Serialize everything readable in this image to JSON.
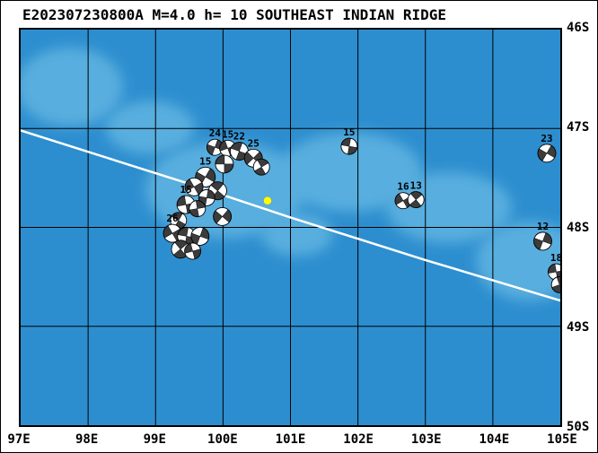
{
  "title": "E202307230800A M=4.0 h= 10 SOUTHEAST INDIAN RIDGE",
  "axes": {
    "lon_ticks": [
      "97E",
      "98E",
      "99E",
      "100E",
      "101E",
      "102E",
      "103E",
      "104E",
      "105E"
    ],
    "lat_ticks": [
      "46S",
      "47S",
      "48S",
      "49S",
      "50S"
    ]
  },
  "map": {
    "lon_min": 97,
    "lon_max": 105,
    "lat_min": 46,
    "lat_max": 50,
    "colors": {
      "ocean": "#2d8ecf",
      "shallow": "#58aede",
      "grid": "#000000",
      "ridge": "#ffffff",
      "mech_fill": "#ffffff",
      "mech_shade": "#3c3c3c",
      "mech_outline": "#000000",
      "epicenter": "#ffff00"
    },
    "ridge_line": [
      [
        97.0,
        47.02
      ],
      [
        99.5,
        47.56
      ],
      [
        101.0,
        47.9
      ],
      [
        103.0,
        48.33
      ],
      [
        105.0,
        48.74
      ]
    ],
    "shallow_patches": [
      {
        "lon": 97.73,
        "lat": 46.58,
        "rx_deg": 0.79,
        "ry_deg": 0.4
      },
      {
        "lon": 98.92,
        "lat": 46.99,
        "rx_deg": 0.66,
        "ry_deg": 0.27
      },
      {
        "lon": 100.04,
        "lat": 47.62,
        "rx_deg": 1.19,
        "ry_deg": 0.49
      },
      {
        "lon": 101.89,
        "lat": 47.44,
        "rx_deg": 1.06,
        "ry_deg": 0.4
      },
      {
        "lon": 103.35,
        "lat": 47.8,
        "rx_deg": 0.93,
        "ry_deg": 0.36
      },
      {
        "lon": 104.54,
        "lat": 48.34,
        "rx_deg": 0.79,
        "ry_deg": 0.4
      },
      {
        "lon": 101.1,
        "lat": 48.07,
        "rx_deg": 0.53,
        "ry_deg": 0.22
      }
    ],
    "epicenter": {
      "lon": 100.66,
      "lat": 47.73,
      "r": 4.5
    },
    "mechanisms": [
      {
        "lon": 99.88,
        "lat": 47.19,
        "r": 9,
        "rot": 20,
        "label": "24"
      },
      {
        "lon": 100.07,
        "lat": 47.2,
        "r": 9,
        "rot": 70,
        "label": "15"
      },
      {
        "lon": 100.24,
        "lat": 47.23,
        "r": 10,
        "rot": 110,
        "label": "22"
      },
      {
        "lon": 100.45,
        "lat": 47.3,
        "r": 10,
        "rot": 45,
        "label": "25"
      },
      {
        "lon": 100.57,
        "lat": 47.39,
        "r": 9,
        "rot": 150,
        "label": ""
      },
      {
        "lon": 100.02,
        "lat": 47.36,
        "r": 10,
        "rot": 90,
        "label": ""
      },
      {
        "lon": 99.74,
        "lat": 47.49,
        "r": 11,
        "rot": 30,
        "label": "15"
      },
      {
        "lon": 99.57,
        "lat": 47.59,
        "r": 10,
        "rot": 60,
        "label": ""
      },
      {
        "lon": 99.92,
        "lat": 47.63,
        "r": 10,
        "rot": 130,
        "label": ""
      },
      {
        "lon": 99.76,
        "lat": 47.7,
        "r": 9,
        "rot": 10,
        "label": ""
      },
      {
        "lon": 99.45,
        "lat": 47.77,
        "r": 10,
        "rot": 80,
        "label": "15"
      },
      {
        "lon": 99.62,
        "lat": 47.81,
        "r": 9,
        "rot": 170,
        "label": ""
      },
      {
        "lon": 99.99,
        "lat": 47.89,
        "r": 10,
        "rot": 40,
        "label": ""
      },
      {
        "lon": 99.34,
        "lat": 47.93,
        "r": 9,
        "rot": 120,
        "label": ""
      },
      {
        "lon": 99.25,
        "lat": 48.06,
        "r": 10,
        "rot": 60,
        "label": "26"
      },
      {
        "lon": 99.46,
        "lat": 48.09,
        "r": 10,
        "rot": 100,
        "label": ""
      },
      {
        "lon": 99.66,
        "lat": 48.09,
        "r": 10,
        "rot": 20,
        "label": ""
      },
      {
        "lon": 99.37,
        "lat": 48.22,
        "r": 10,
        "rot": 140,
        "label": ""
      },
      {
        "lon": 99.55,
        "lat": 48.24,
        "r": 9,
        "rot": 75,
        "label": ""
      },
      {
        "lon": 101.87,
        "lat": 47.18,
        "r": 9,
        "rot": 100,
        "label": "15"
      },
      {
        "lon": 104.8,
        "lat": 47.25,
        "r": 10,
        "rot": 30,
        "label": "23"
      },
      {
        "lon": 102.67,
        "lat": 47.73,
        "r": 9,
        "rot": 60,
        "label": "16"
      },
      {
        "lon": 102.86,
        "lat": 47.72,
        "r": 9,
        "rot": 140,
        "label": "13"
      },
      {
        "lon": 104.74,
        "lat": 48.14,
        "r": 10,
        "rot": 20,
        "label": "12"
      },
      {
        "lon": 104.94,
        "lat": 48.45,
        "r": 9,
        "rot": 80,
        "label": "18"
      },
      {
        "lon": 104.99,
        "lat": 48.58,
        "r": 9,
        "rot": 160,
        "label": ""
      }
    ]
  }
}
